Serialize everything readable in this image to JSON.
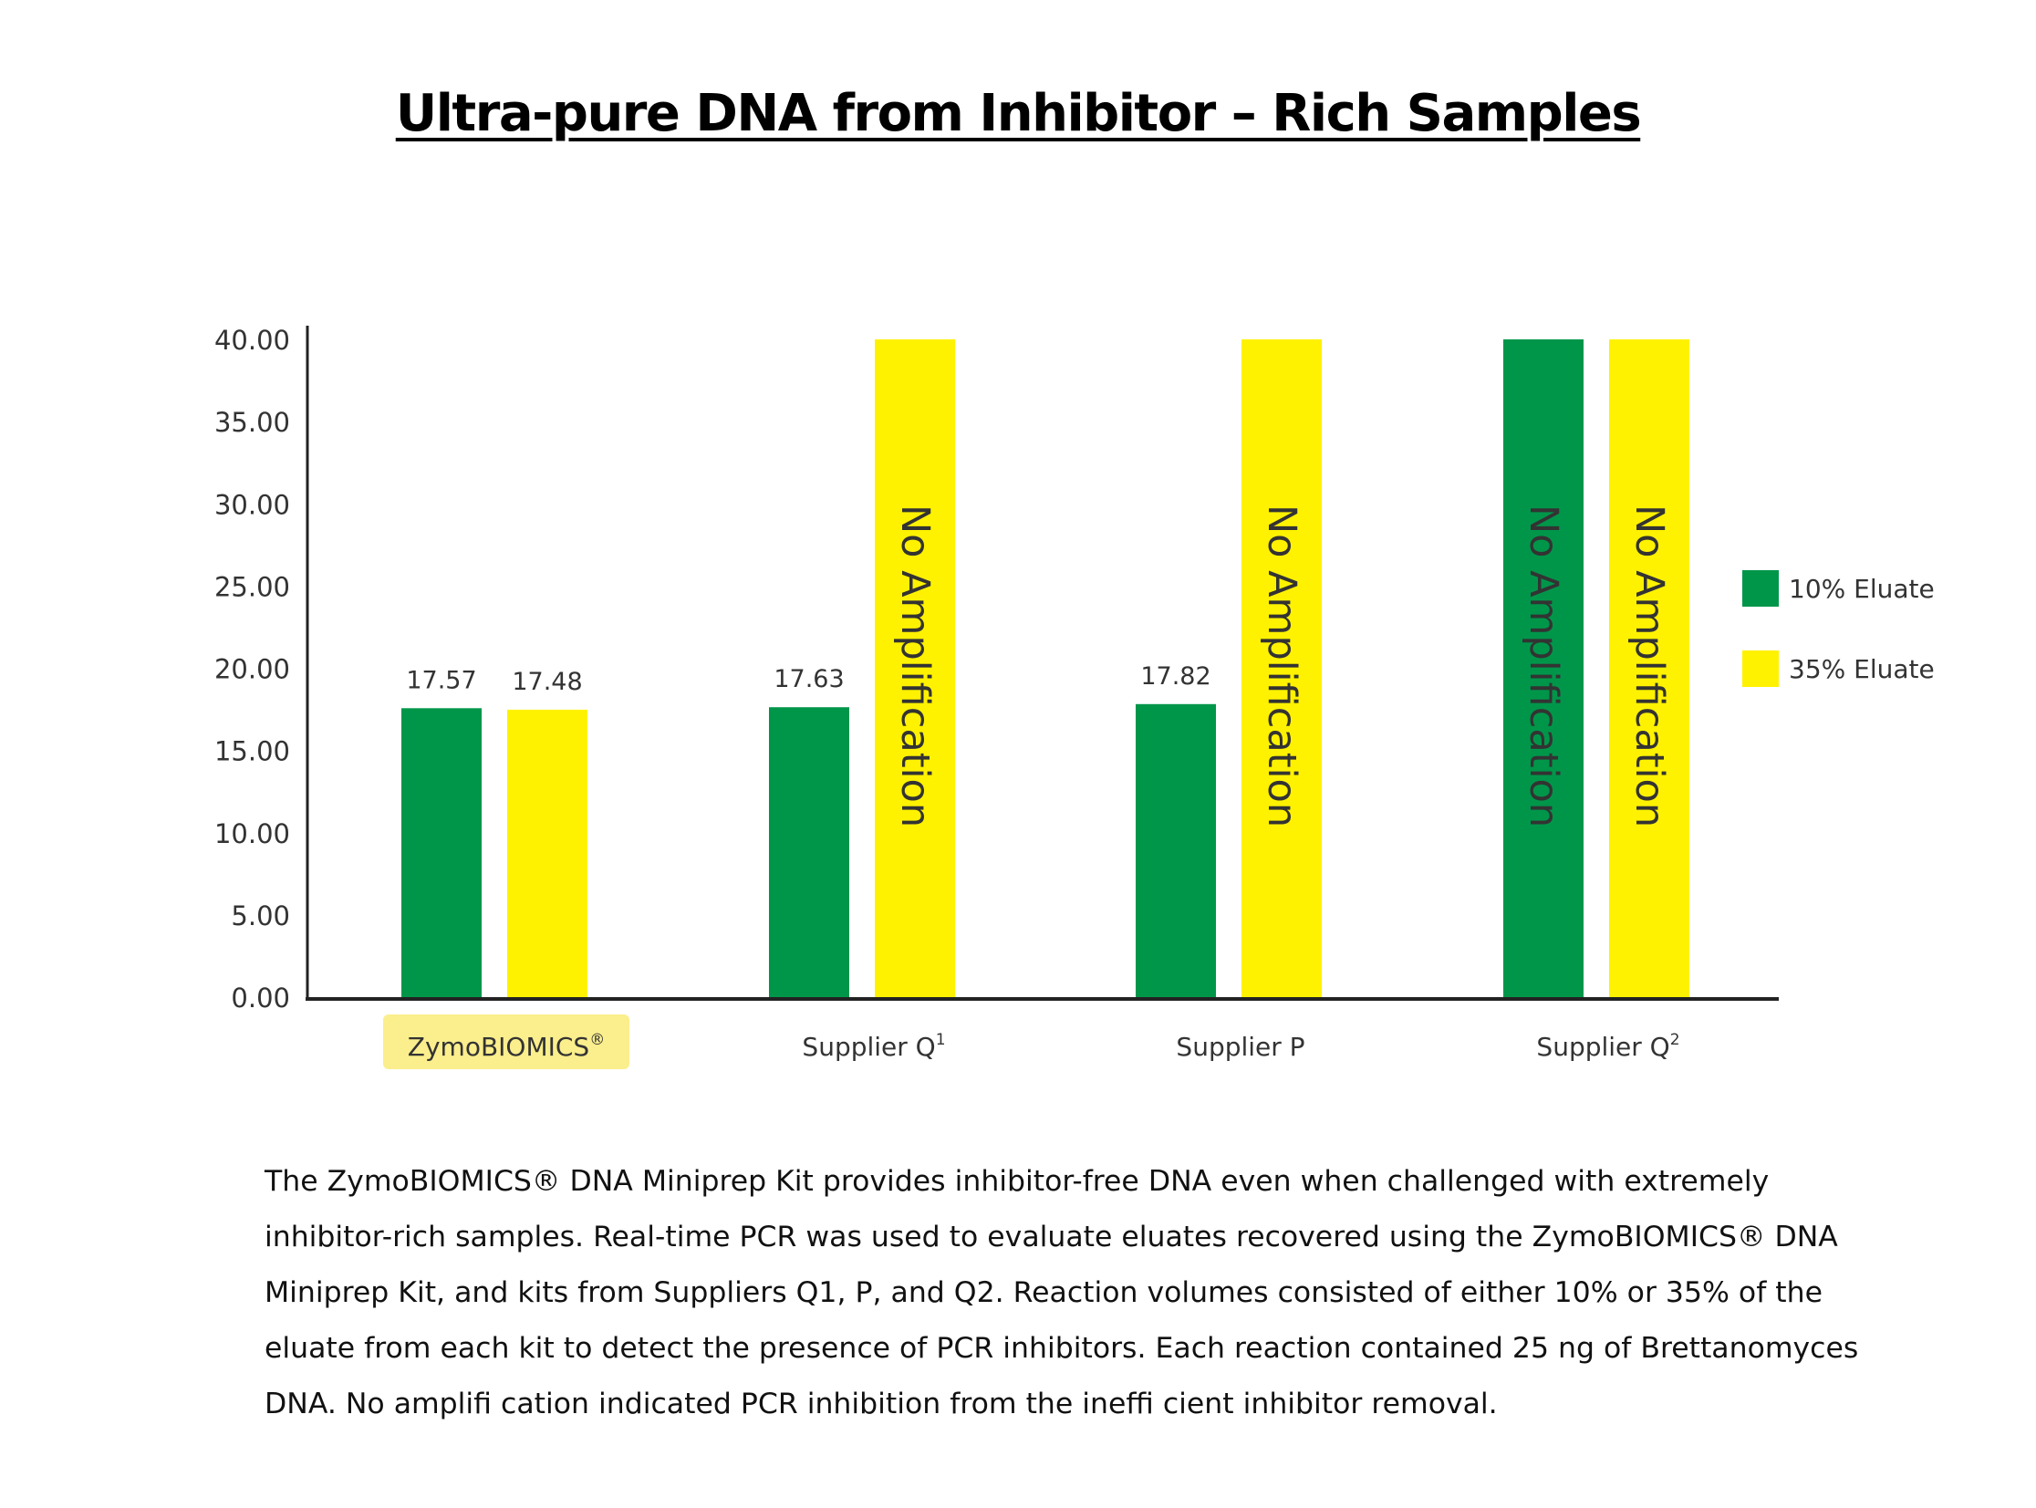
{
  "title": "Ultra-pure DNA from Inhibitor – Rich Samples",
  "caption": "The ZymoBIOMICS® DNA Miniprep Kit provides inhibitor-free DNA even when challenged with extremely inhibitor-rich samples. Real-time PCR was used to evaluate eluates recovered using the ZymoBIOMICS® DNA Miniprep Kit, and kits from Suppliers Q1, P, and Q2. Reaction volumes consisted of either 10% or 35% of the eluate from each kit to detect the presence of PCR inhibitors. Each reaction contained 25 ng of Brettanomyces DNA. No amplifi cation indicated PCR inhibition from the ineffi cient inhibitor removal.",
  "chart_data": {
    "type": "bar",
    "title": "Ultra-pure DNA from Inhibitor – Rich Samples",
    "xlabel": "",
    "ylabel": "",
    "ylim": [
      0,
      40
    ],
    "yticks": [
      "0.00",
      "5.00",
      "10.00",
      "15.00",
      "20.00",
      "25.00",
      "30.00",
      "35.00",
      "40.00"
    ],
    "categories": [
      {
        "label": "ZymoBIOMICS",
        "sup": "®",
        "highlight": true
      },
      {
        "label": "Supplier Q",
        "sup": "1",
        "highlight": false
      },
      {
        "label": "Supplier P",
        "sup": "",
        "highlight": false
      },
      {
        "label": "Supplier Q",
        "sup": "2",
        "highlight": false
      }
    ],
    "series": [
      {
        "name": "10% Eluate",
        "color": "#00964a",
        "values": [
          17.57,
          17.63,
          17.82,
          40
        ],
        "labels": [
          "17.57",
          "17.63",
          "17.82",
          "No Amplification"
        ]
      },
      {
        "name": "35% Eluate",
        "color": "#fff200",
        "values": [
          17.48,
          40,
          40,
          40
        ],
        "labels": [
          "17.48",
          "No Amplification",
          "No Amplification",
          "No Amplification"
        ]
      }
    ],
    "no_amp_text": "No Amplification",
    "highlight_color": "#fbee8c",
    "grid": false,
    "legend_position": "right"
  }
}
